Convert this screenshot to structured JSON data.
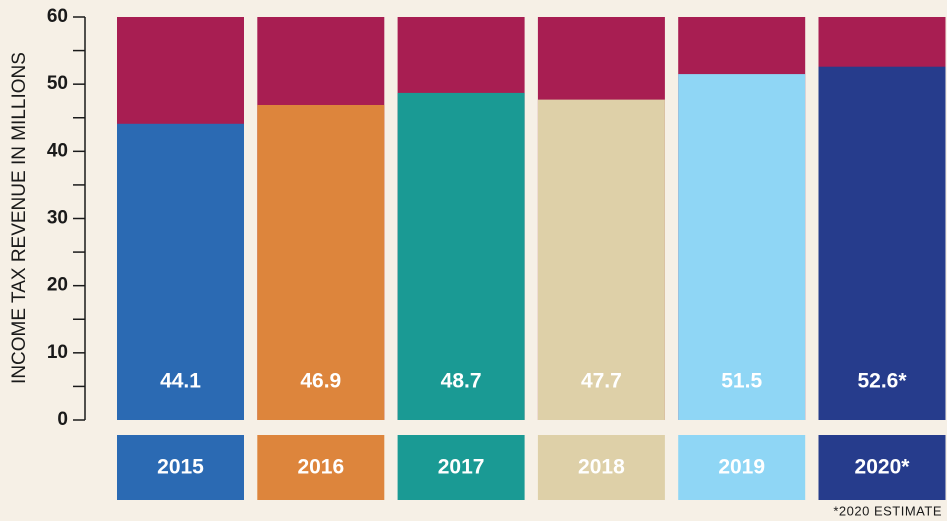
{
  "chart_data": {
    "type": "bar",
    "y_axis_label": "INCOME TAX REVENUE IN MILLIONS",
    "categories": [
      "2015",
      "2016",
      "2017",
      "2018",
      "2019",
      "2020*"
    ],
    "values": [
      44.1,
      46.9,
      48.7,
      47.7,
      51.5,
      52.6
    ],
    "value_labels": [
      "44.1",
      "46.9",
      "48.7",
      "47.7",
      "51.5",
      "52.6*"
    ],
    "colors": [
      "#2b6ab3",
      "#dd853c",
      "#1a9a94",
      "#ded0a8",
      "#8fd6f5",
      "#263c8c"
    ],
    "background_color": "#a81e52",
    "ylim": [
      0,
      60
    ],
    "yticks": [
      0,
      10,
      20,
      30,
      40,
      50,
      60
    ],
    "yticks_minor": [
      5,
      15,
      25,
      35,
      45,
      55
    ],
    "footnote": "*2020 ESTIMATE"
  }
}
